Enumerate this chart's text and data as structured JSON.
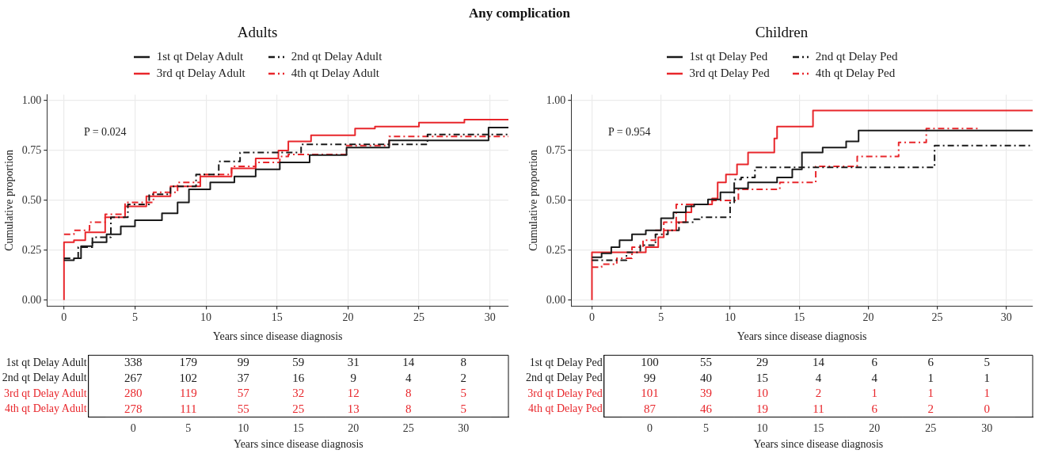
{
  "chart_data": [
    {
      "type": "step",
      "title": "Any complication",
      "subtitle": "Adults",
      "xlabel": "Years since disease diagnosis",
      "ylabel": "Cumulative proportion",
      "xlim": [
        -1.2,
        31.3
      ],
      "xticks": [
        0,
        5,
        10,
        15,
        20,
        25,
        30
      ],
      "ylim": [
        -0.03,
        1.03
      ],
      "yticks": [
        {
          "value": 0,
          "label": "0.00"
        },
        {
          "value": 0.25,
          "label": "0.25"
        },
        {
          "value": 0.5,
          "label": "0.50"
        },
        {
          "value": 0.75,
          "label": "0.75"
        },
        {
          "value": 1,
          "label": "1.00"
        }
      ],
      "grid": true,
      "legend": "top",
      "annotations": [
        "P = 0.024"
      ],
      "series": [
        {
          "name": "1st qt Delay Adult",
          "color": "#1a1a1a",
          "line_style": "solid",
          "x": [
            0,
            0.7,
            1.2,
            2,
            3,
            4,
            5,
            6.9,
            8,
            8.8,
            10.3,
            12,
            13.5,
            15.2,
            17.3,
            19.9,
            22.9,
            29.9,
            31.3
          ],
          "values": [
            0.2,
            0.21,
            0.27,
            0.29,
            0.33,
            0.37,
            0.4,
            0.435,
            0.49,
            0.555,
            0.59,
            0.62,
            0.655,
            0.69,
            0.727,
            0.765,
            0.8,
            0.865,
            0.865
          ]
        },
        {
          "name": "2nd qt Delay Adult",
          "color": "#1a1a1a",
          "line_style": "dashed",
          "x": [
            0,
            1,
            2,
            3.3,
            4.5,
            6,
            7.5,
            9.3,
            10.9,
            12.4,
            16.7,
            25.6,
            31.3
          ],
          "values": [
            0.21,
            0.265,
            0.315,
            0.415,
            0.48,
            0.53,
            0.57,
            0.63,
            0.695,
            0.74,
            0.78,
            0.83,
            0.83
          ]
        },
        {
          "name": "3rd qt Delay Adult",
          "color": "#e8262b",
          "line_style": "solid",
          "x": [
            0,
            0,
            0.7,
            1.5,
            2.9,
            4.3,
            5.8,
            7.5,
            9.6,
            11.8,
            13.5,
            15.1,
            15.8,
            17.4,
            20.5,
            21.9,
            25,
            28.2,
            31.3
          ],
          "values": [
            0,
            0.29,
            0.3,
            0.34,
            0.415,
            0.47,
            0.52,
            0.57,
            0.62,
            0.66,
            0.71,
            0.75,
            0.795,
            0.826,
            0.86,
            0.87,
            0.89,
            0.905,
            0.905
          ]
        },
        {
          "name": "4th qt Delay Adult",
          "color": "#e8262b",
          "line_style": "dashed",
          "x": [
            0,
            0.7,
            1.8,
            2.9,
            4.3,
            6.3,
            8,
            9.6,
            11.8,
            13.5,
            15.2,
            15.8,
            19.9,
            22.9,
            31.3
          ],
          "values": [
            0.33,
            0.35,
            0.39,
            0.43,
            0.49,
            0.54,
            0.59,
            0.63,
            0.67,
            0.69,
            0.72,
            0.73,
            0.775,
            0.82,
            0.82
          ]
        }
      ]
    },
    {
      "type": "heatmap",
      "xlabel": "Years since disease diagnosis",
      "categories": [
        "0",
        "5",
        "10",
        "15",
        "20",
        "25",
        "30"
      ],
      "y_categories": [
        "1st qt Delay Adult",
        "2nd qt Delay Adult",
        "3rd qt Delay Adult",
        "4th qt Delay Adult"
      ],
      "colors": [
        "#1a1a1a",
        "#1a1a1a",
        "#e8262b",
        "#e8262b"
      ],
      "data_labels": true,
      "cells": [
        [
          338,
          179,
          99,
          59,
          31,
          14,
          8
        ],
        [
          267,
          102,
          37,
          16,
          9,
          4,
          2
        ],
        [
          280,
          119,
          57,
          32,
          12,
          8,
          5
        ],
        [
          278,
          111,
          55,
          25,
          13,
          8,
          5
        ]
      ]
    },
    {
      "type": "step",
      "title": "Children",
      "xlabel": "Years since disease diagnosis",
      "ylabel": "Cumulative proportion",
      "xlim": [
        -1.5,
        31.9
      ],
      "xticks": [
        0,
        5,
        10,
        15,
        20,
        25,
        30
      ],
      "ylim": [
        -0.03,
        1.03
      ],
      "yticks": [
        {
          "value": 0,
          "label": "0.00"
        },
        {
          "value": 0.25,
          "label": "0.25"
        },
        {
          "value": 0.5,
          "label": "0.50"
        },
        {
          "value": 0.75,
          "label": "0.75"
        },
        {
          "value": 1,
          "label": "1.00"
        }
      ],
      "grid": true,
      "legend": "top",
      "annotations": [
        "P = 0.954"
      ],
      "series": [
        {
          "name": "1st qt Delay Ped",
          "color": "#1a1a1a",
          "line_style": "solid",
          "x": [
            0,
            0.7,
            1.4,
            2,
            2.9,
            3.9,
            5,
            5.9,
            6.8,
            7.4,
            8.4,
            9.3,
            10.3,
            11.3,
            13.4,
            14.5,
            15.2,
            16.7,
            18.4,
            19.3,
            31.9
          ],
          "values": [
            0.215,
            0.235,
            0.265,
            0.3,
            0.33,
            0.35,
            0.41,
            0.44,
            0.47,
            0.48,
            0.505,
            0.54,
            0.56,
            0.59,
            0.615,
            0.655,
            0.74,
            0.765,
            0.795,
            0.85,
            0.85
          ]
        },
        {
          "name": "2nd qt Delay Ped",
          "color": "#1a1a1a",
          "line_style": "dashed",
          "x": [
            0,
            2.5,
            3.5,
            4.6,
            5.5,
            6.3,
            7.4,
            7.8,
            10,
            10.3,
            10.8,
            11.8,
            24.8,
            31.9
          ],
          "values": [
            0.2,
            0.24,
            0.275,
            0.33,
            0.35,
            0.39,
            0.405,
            0.415,
            0.49,
            0.605,
            0.615,
            0.665,
            0.775,
            0.775
          ]
        },
        {
          "name": "3rd qt Delay Ped",
          "color": "#e8262b",
          "line_style": "solid",
          "x": [
            0,
            0,
            3.9,
            4.8,
            5.2,
            6.1,
            6.8,
            7.2,
            8.7,
            9.1,
            9.7,
            10.5,
            11.3,
            13.2,
            13.4,
            16,
            31.9
          ],
          "values": [
            0,
            0.24,
            0.265,
            0.315,
            0.35,
            0.39,
            0.44,
            0.48,
            0.51,
            0.59,
            0.63,
            0.68,
            0.74,
            0.81,
            0.87,
            0.95,
            0.95
          ]
        },
        {
          "name": "4th qt Delay Ped",
          "color": "#e8262b",
          "line_style": "dashed",
          "x": [
            0,
            0.7,
            1.8,
            2.9,
            3.7,
            4.6,
            5.2,
            6.1,
            8.7,
            10.6,
            13.6,
            16.2,
            19.2,
            22.2,
            24.2,
            28
          ],
          "values": [
            0.165,
            0.18,
            0.21,
            0.265,
            0.3,
            0.35,
            0.39,
            0.48,
            0.5,
            0.555,
            0.59,
            0.67,
            0.72,
            0.79,
            0.86,
            0.86
          ]
        }
      ]
    },
    {
      "type": "heatmap",
      "xlabel": "Years since disease diagnosis",
      "categories": [
        "0",
        "5",
        "10",
        "15",
        "20",
        "25",
        "30"
      ],
      "y_categories": [
        "1st qt Delay Ped",
        "2nd qt Delay Ped",
        "3rd qt Delay Ped",
        "4th qt Delay Ped"
      ],
      "colors": [
        "#1a1a1a",
        "#1a1a1a",
        "#e8262b",
        "#e8262b"
      ],
      "data_labels": true,
      "cells": [
        [
          100,
          55,
          29,
          14,
          6,
          6,
          5
        ],
        [
          99,
          40,
          15,
          4,
          4,
          1,
          1
        ],
        [
          101,
          39,
          10,
          2,
          1,
          1,
          1
        ],
        [
          87,
          46,
          19,
          11,
          6,
          2,
          0
        ]
      ]
    }
  ]
}
